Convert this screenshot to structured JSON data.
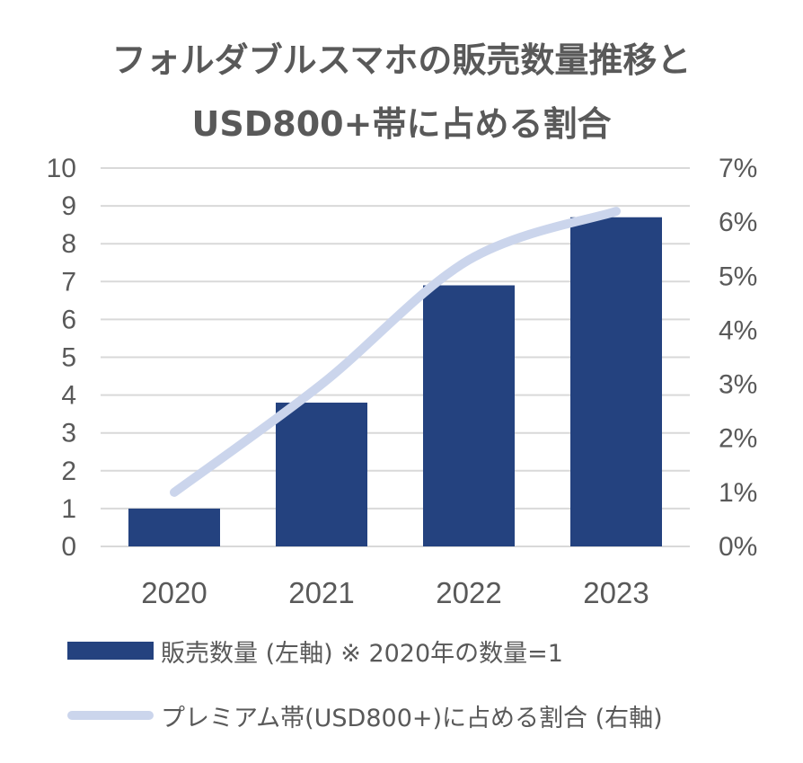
{
  "chart_data": {
    "type": "bar",
    "title": "フォルダブルスマホの販売数量推移と USD800+帯に占める割合",
    "title_lines": [
      "フォルダブルスマホの販売数量推移と",
      "USD800+帯に占める割合"
    ],
    "categories": [
      "2020",
      "2021",
      "2022",
      "2023"
    ],
    "series": [
      {
        "name": "販売数量 (左軸) ※ 2020年の数量=1",
        "type": "bar",
        "axis": "left",
        "color": "#24427f",
        "values": [
          1.0,
          3.8,
          6.9,
          8.7
        ]
      },
      {
        "name": "プレミアム帯(USD800+)に占める割合 (右軸)",
        "type": "line",
        "axis": "right",
        "color": "#cbd5ec",
        "values": [
          0.01,
          0.03,
          0.053,
          0.062
        ]
      }
    ],
    "y_left": {
      "ylim": [
        0,
        10
      ],
      "ticks": [
        "0",
        "1",
        "2",
        "3",
        "4",
        "5",
        "6",
        "7",
        "8",
        "9",
        "10"
      ]
    },
    "y_right": {
      "ylim": [
        0,
        0.07
      ],
      "ticks": [
        "0%",
        "1%",
        "2%",
        "3%",
        "4%",
        "5%",
        "6%",
        "7%"
      ]
    },
    "grid": true,
    "legend_position": "bottom"
  }
}
